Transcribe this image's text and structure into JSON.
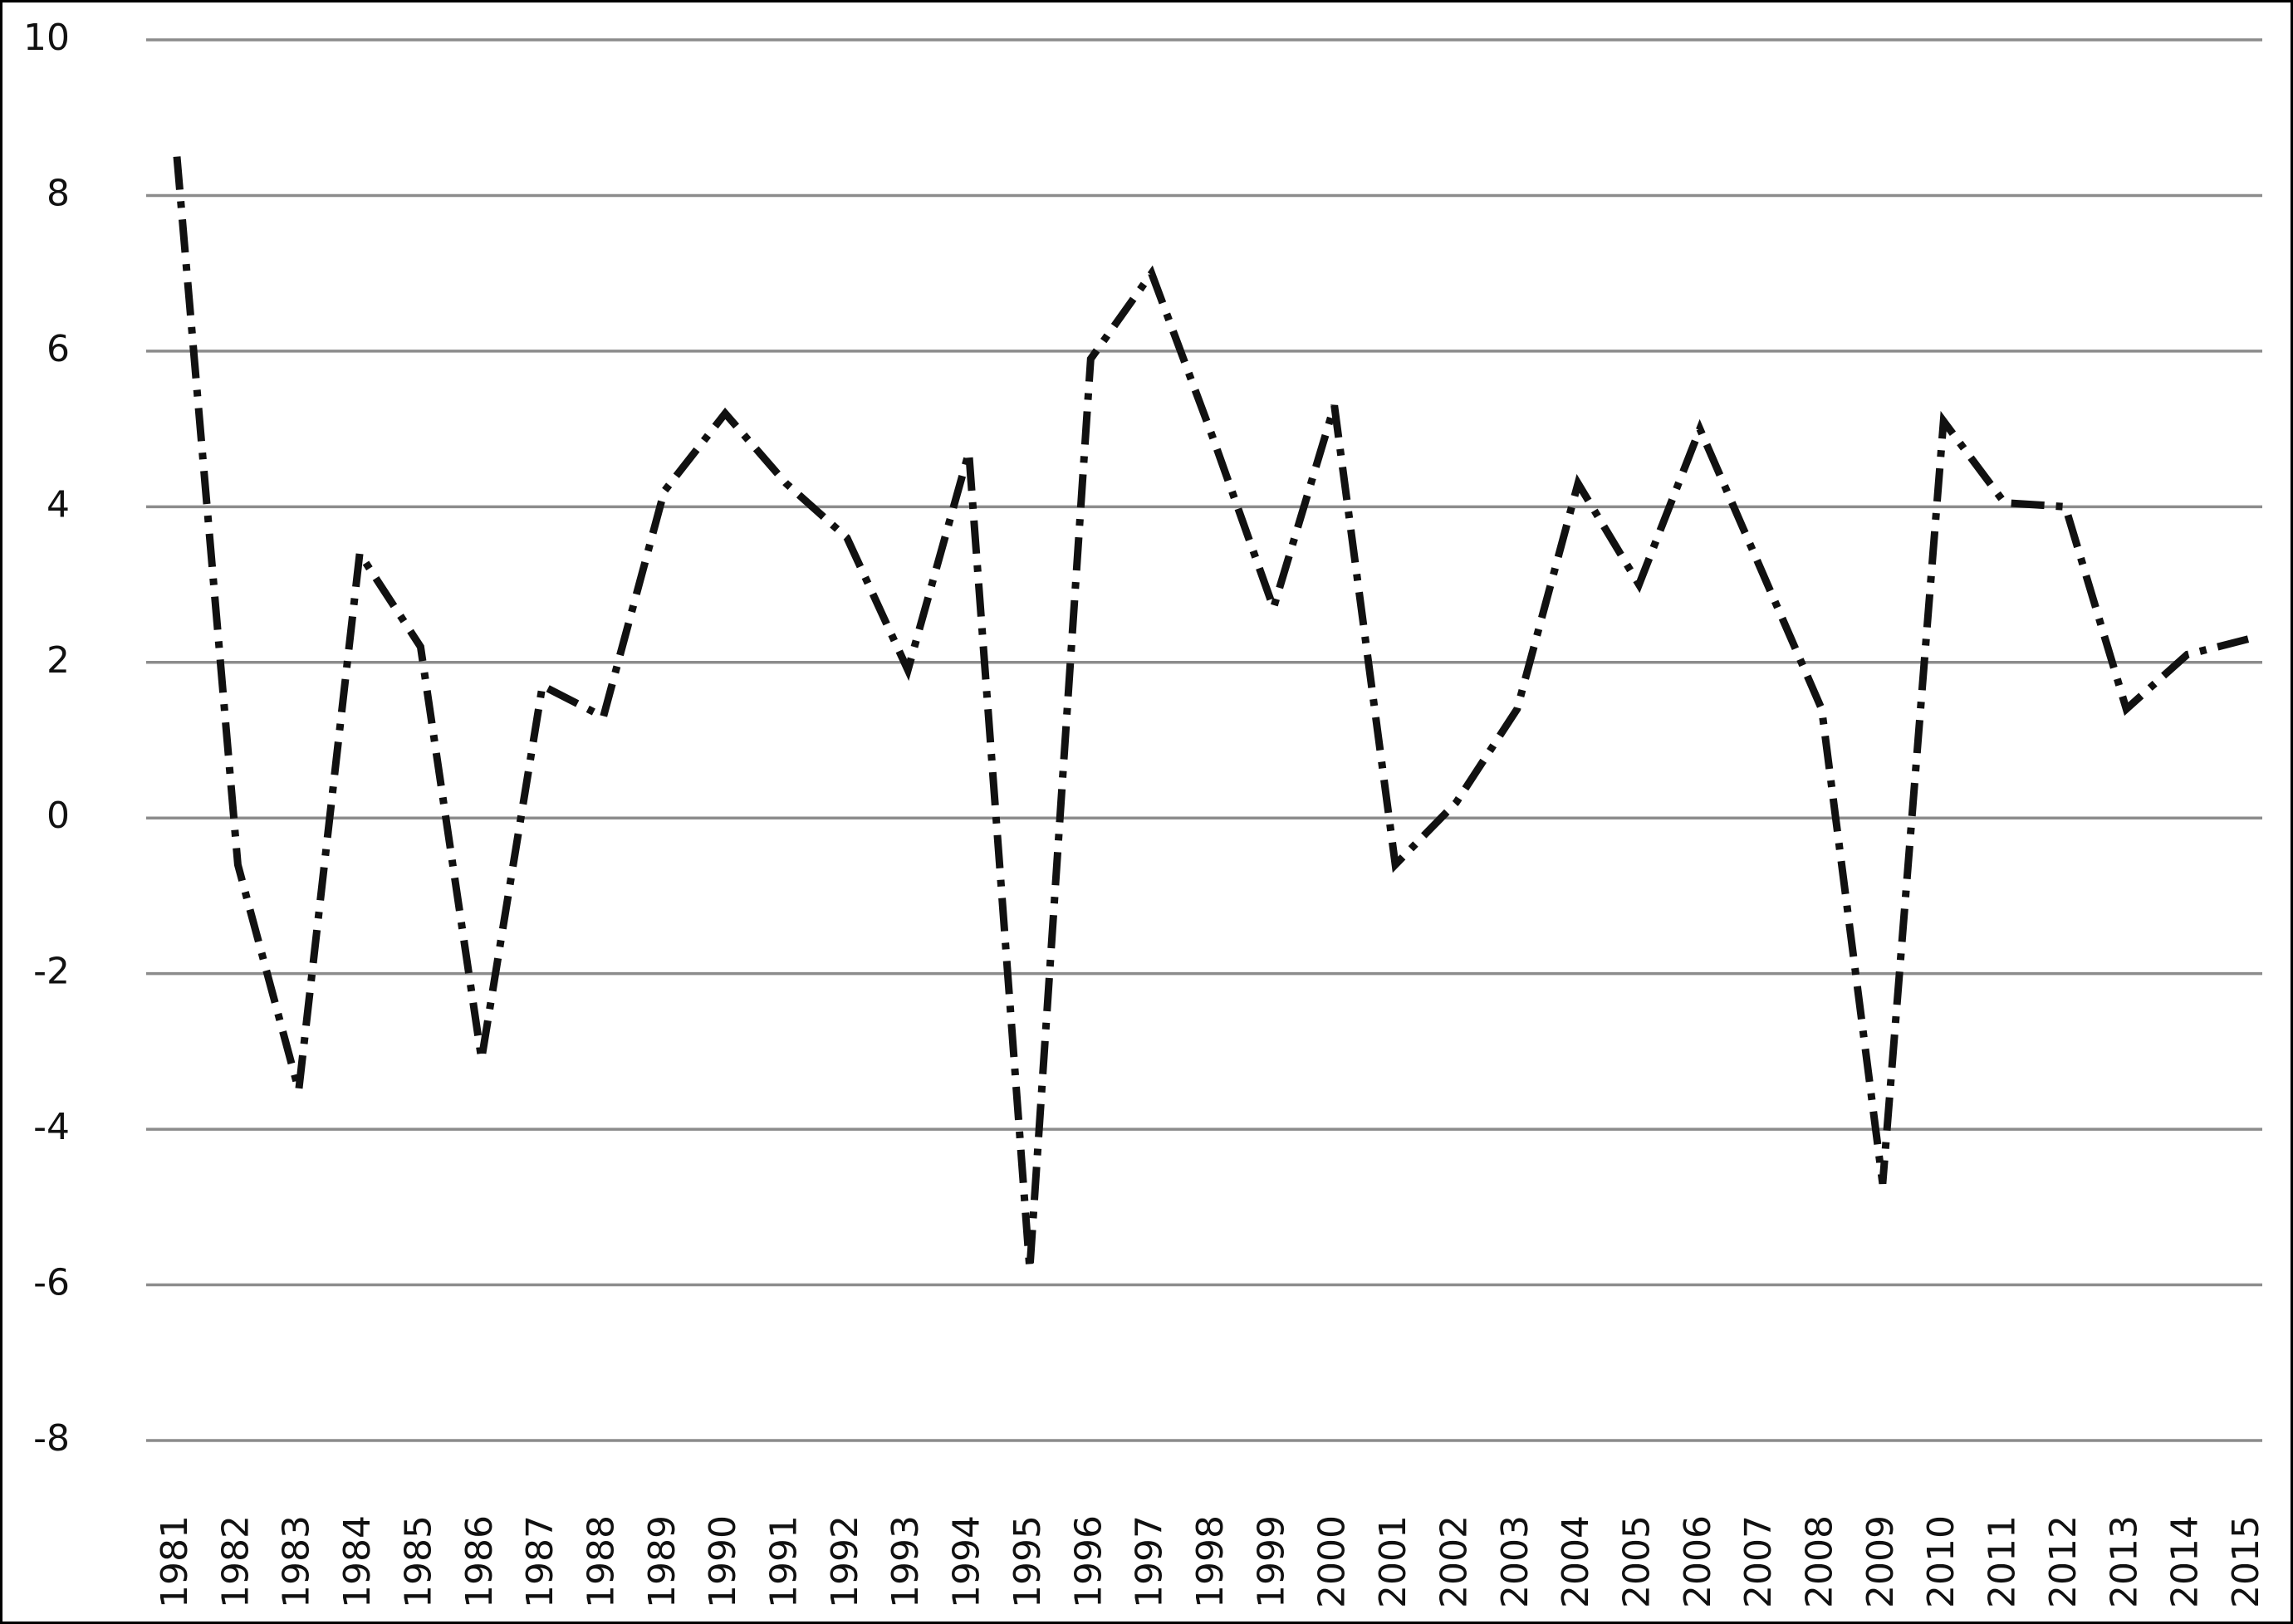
{
  "chart_data": {
    "type": "line",
    "categories": [
      "1981",
      "1982",
      "1983",
      "1984",
      "1985",
      "1986",
      "1987",
      "1988",
      "1989",
      "1990",
      "1991",
      "1992",
      "1993",
      "1994",
      "1995",
      "1996",
      "1997",
      "1998",
      "1999",
      "2000",
      "2001",
      "2002",
      "2003",
      "2004",
      "2005",
      "2006",
      "2007",
      "2008",
      "2009",
      "2010",
      "2011",
      "2012",
      "2013",
      "2014",
      "2015"
    ],
    "values": [
      8.5,
      -0.6,
      -3.5,
      3.4,
      2.2,
      -3.1,
      1.7,
      1.3,
      4.2,
      5.2,
      4.3,
      3.6,
      1.9,
      4.7,
      -5.8,
      5.9,
      7.0,
      4.9,
      2.7,
      5.3,
      -0.6,
      0.2,
      1.4,
      4.3,
      3.0,
      5.0,
      3.2,
      1.4,
      -4.7,
      5.1,
      4.05,
      4.0,
      1.4,
      2.1,
      2.3
    ],
    "color": "#111111",
    "ylim": [
      -8,
      10
    ],
    "yticks": [
      -8,
      -6,
      -4,
      -2,
      0,
      2,
      4,
      6,
      8,
      10
    ],
    "grid": true
  }
}
